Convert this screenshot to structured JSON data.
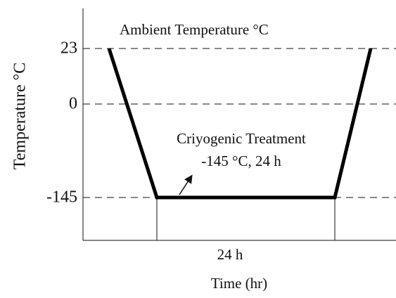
{
  "title": "Ambient Temperature  °C",
  "y_axis": {
    "label": "Temperature  °C",
    "ticks": [
      "23",
      "0",
      "-145"
    ]
  },
  "x_axis": {
    "label": "Time (hr)",
    "duration_label": "24 h"
  },
  "annotation": {
    "lines": [
      "Criyogenic Treatment",
      "-145 °C, 24 h"
    ]
  }
}
